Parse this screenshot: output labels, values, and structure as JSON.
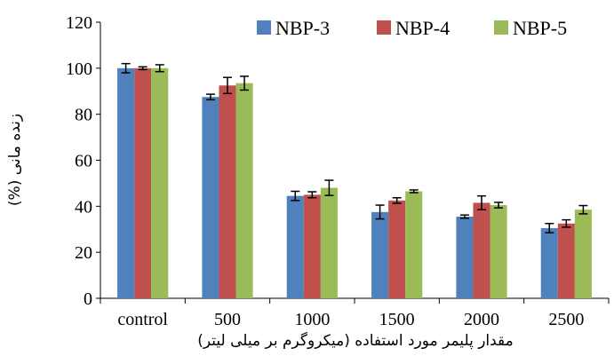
{
  "chart_data": {
    "type": "bar",
    "categories": [
      "control",
      "500",
      "1000",
      "1500",
      "2000",
      "2500"
    ],
    "series": [
      {
        "name": "NBP-3",
        "color": "#4F81BD",
        "values": [
          100,
          87.5,
          44.5,
          37.5,
          35.5,
          30.5
        ],
        "errors": [
          2,
          1.2,
          2,
          3,
          0.7,
          2
        ]
      },
      {
        "name": "NBP-4",
        "color": "#C0504D",
        "values": [
          100,
          92.5,
          45,
          42.5,
          41.5,
          32.5
        ],
        "errors": [
          0.6,
          3.5,
          1.3,
          1.2,
          3,
          1.6
        ]
      },
      {
        "name": "NBP-5",
        "color": "#9BBB59",
        "values": [
          100,
          93.5,
          48,
          46.5,
          40.5,
          38.5
        ],
        "errors": [
          1.5,
          3,
          3.3,
          0.6,
          1.2,
          1.8
        ]
      }
    ],
    "xlabel": "مقدار پلیمر مورد استفاده (میکروگرم بر میلی لیتر)",
    "ylabel": "زنده مانی (%)",
    "ylim": [
      0,
      120
    ],
    "yticks": [
      "0",
      "20",
      "40",
      "60",
      "80",
      "100",
      "120"
    ],
    "grid": false,
    "legend_position": "top"
  }
}
